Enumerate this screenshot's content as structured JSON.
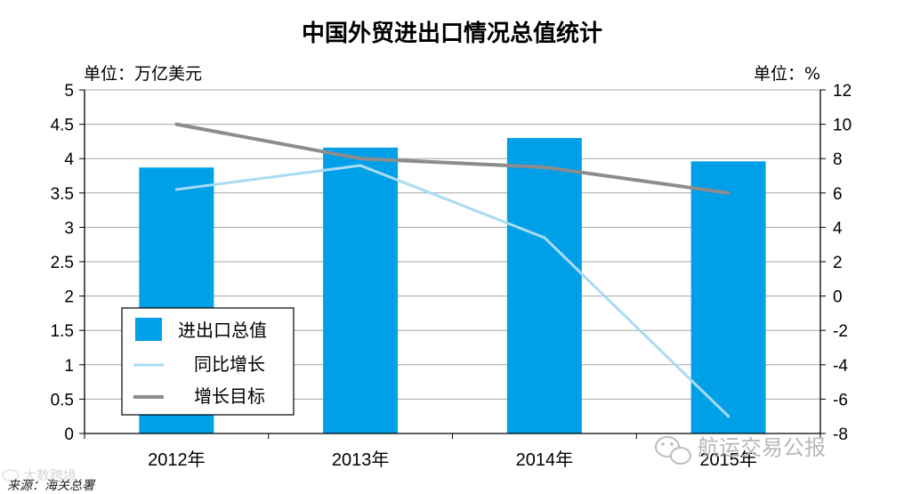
{
  "chart_data": {
    "type": "bar",
    "title": "中国外贸进出口情况总值统计",
    "left_unit": "单位：万亿美元",
    "right_unit": "单位：%",
    "categories": [
      "2012年",
      "2013年",
      "2014年",
      "2015年"
    ],
    "ylim_left": [
      0,
      5
    ],
    "ylim_right": [
      -8,
      12
    ],
    "yticks_left": [
      "0",
      "0.5",
      "1",
      "1.5",
      "2",
      "2.5",
      "3",
      "3.5",
      "4",
      "4.5",
      "5"
    ],
    "yticks_right": [
      "-8",
      "-6",
      "-4",
      "-2",
      "0",
      "2",
      "4",
      "6",
      "8",
      "10",
      "12"
    ],
    "grid": true,
    "legend_position": "bottom-left",
    "series": [
      {
        "name": "进出口总值",
        "type": "bar",
        "axis": "left",
        "color": "#00a0e9",
        "values": [
          3.87,
          4.16,
          4.3,
          3.96
        ]
      },
      {
        "name": "同比增长",
        "type": "line",
        "axis": "right",
        "color": "#a9dcf2",
        "values": [
          6.2,
          7.6,
          3.4,
          -7.0
        ]
      },
      {
        "name": "增长目标",
        "type": "line",
        "axis": "right",
        "color": "#8c8c8c",
        "values": [
          10,
          8,
          7.5,
          6
        ]
      }
    ],
    "source": "来源：海关总署"
  },
  "watermark": {
    "text": "航运交易公报",
    "corner_text": "大数跨境",
    "icon": "wechat-icon",
    "corner_icon": "weibo-icon"
  }
}
